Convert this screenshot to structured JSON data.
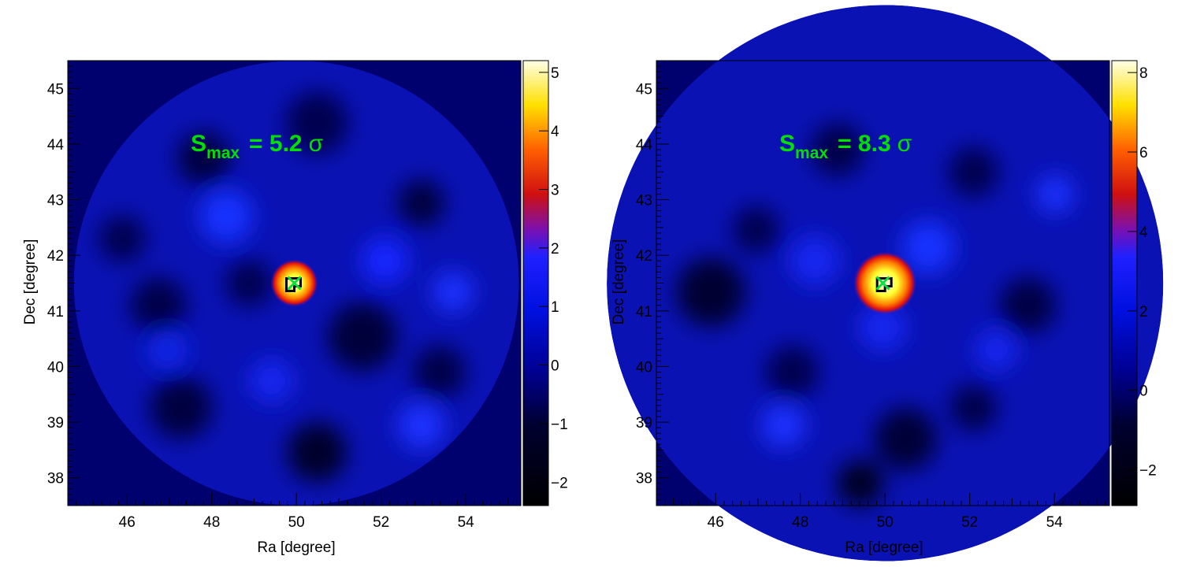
{
  "chart_data": [
    {
      "type": "heatmap",
      "xlabel": "Ra [degree]",
      "ylabel": "Dec [degree]",
      "xlim": [
        44.6,
        55.3
      ],
      "ylim": [
        37.5,
        45.5
      ],
      "xticks": [
        "46",
        "48",
        "50",
        "52",
        "54"
      ],
      "yticks": [
        "38",
        "39",
        "40",
        "41",
        "42",
        "43",
        "44",
        "45"
      ],
      "region": {
        "shape": "circle",
        "center": [
          50.0,
          41.5
        ],
        "radius_deg": 4.0
      },
      "peak": {
        "ra": 49.95,
        "dec": 41.5,
        "value": 5.2
      },
      "annotation": {
        "symbol": "S",
        "subscript": "max",
        "text": "= 5.2",
        "unit": "σ",
        "color": "#00e000"
      },
      "colorbar": {
        "min": -2.4,
        "max": 5.2,
        "ticks": [
          "−2",
          "−1",
          "0",
          "1",
          "2",
          "3",
          "4",
          "5"
        ],
        "tick_values": [
          -2,
          -1,
          0,
          1,
          2,
          3,
          4,
          5
        ]
      },
      "marker": {
        "shape": "x",
        "color": "#00e040",
        "ra": 49.95,
        "dec": 41.5
      }
    },
    {
      "type": "heatmap",
      "xlabel": "Ra [degree]",
      "ylabel": "Dec [degree]",
      "xlim": [
        44.6,
        55.3
      ],
      "ylim": [
        37.5,
        45.5
      ],
      "xticks": [
        "46",
        "48",
        "50",
        "52",
        "54"
      ],
      "yticks": [
        "38",
        "39",
        "40",
        "41",
        "42",
        "43",
        "44",
        "45"
      ],
      "region": {
        "shape": "circle",
        "center": [
          50.0,
          41.5
        ],
        "radius_deg": 5.0
      },
      "peak": {
        "ra": 50.0,
        "dec": 41.5,
        "value": 8.3
      },
      "annotation": {
        "symbol": "S",
        "subscript": "max",
        "text": "= 8.3",
        "unit": "σ",
        "color": "#00e000"
      },
      "colorbar": {
        "min": -2.9,
        "max": 8.3,
        "ticks": [
          "−2",
          "0",
          "2",
          "4",
          "6",
          "8"
        ],
        "tick_values": [
          -2,
          0,
          2,
          4,
          6,
          8
        ]
      },
      "marker": {
        "shape": "x",
        "color": "#00e040",
        "ra": 49.95,
        "dec": 41.5
      }
    }
  ]
}
